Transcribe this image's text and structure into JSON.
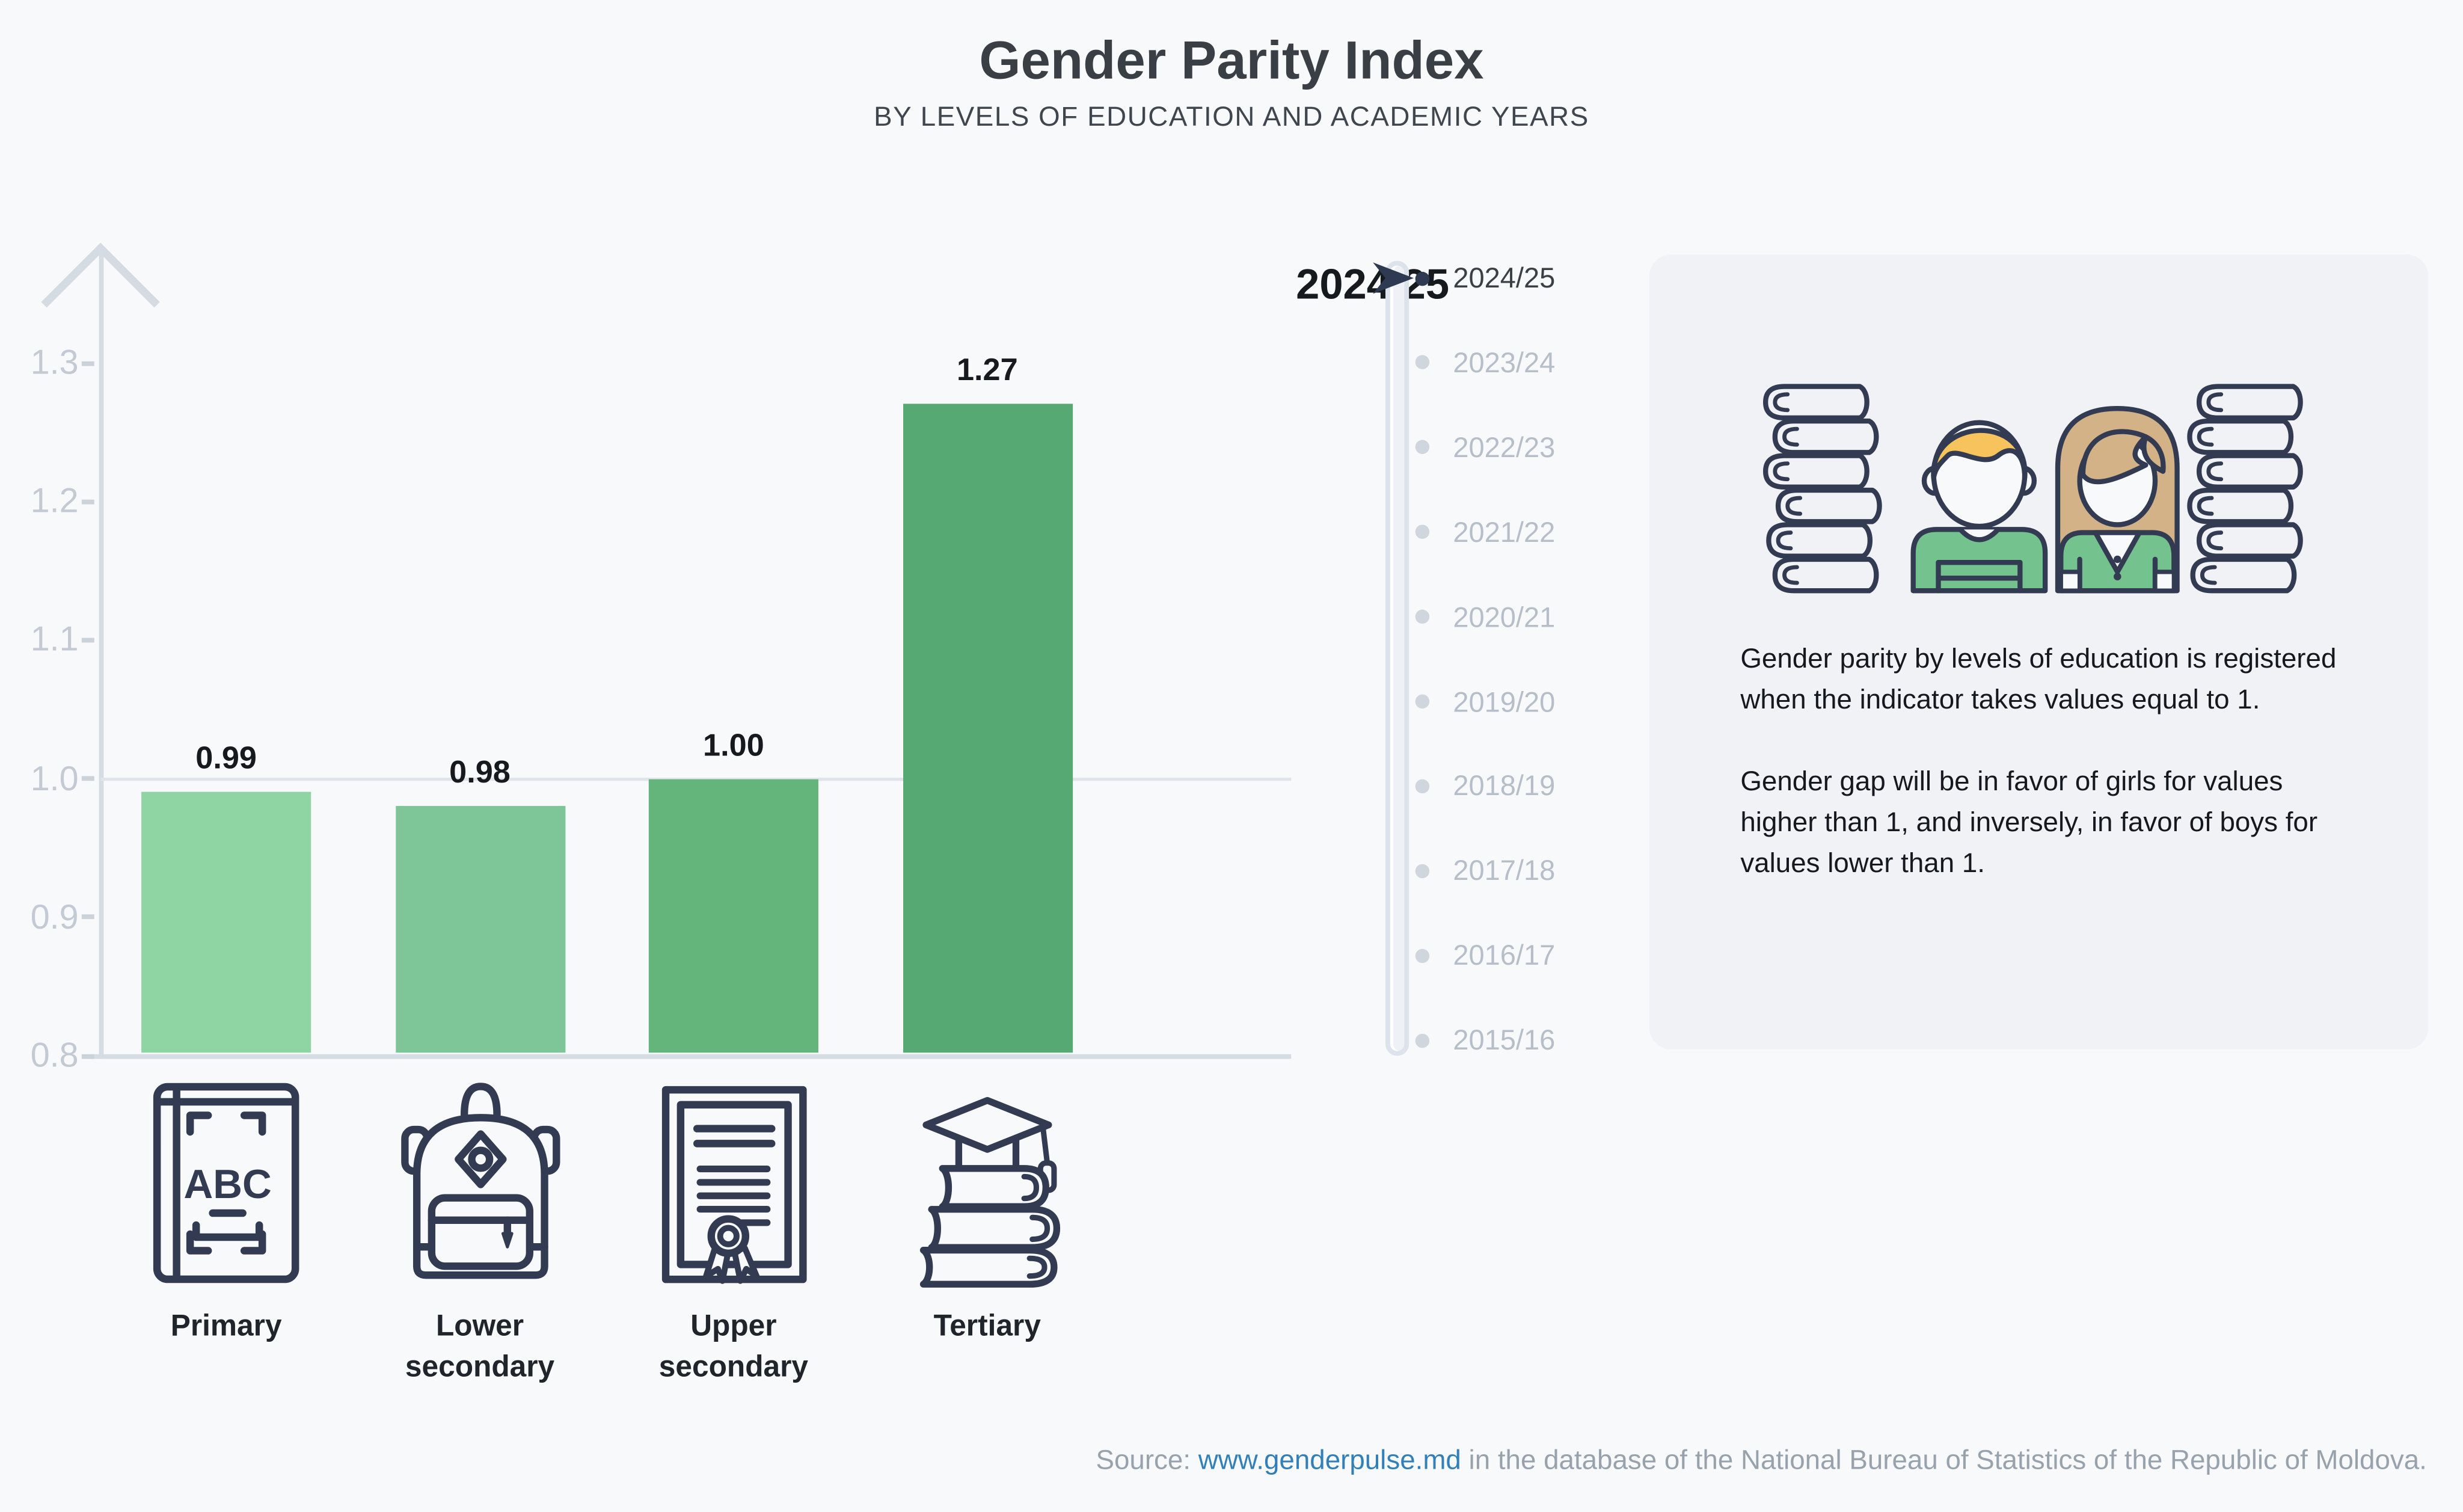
{
  "title": "Gender Parity Index",
  "subtitle": "BY LEVELS OF EDUCATION AND ACADEMIC YEARS",
  "chart_data": {
    "type": "bar",
    "title": "Gender Parity Index",
    "subtitle": "BY LEVELS OF EDUCATION AND ACADEMIC YEARS",
    "categories": [
      "Primary",
      "Lower secondary",
      "Upper secondary",
      "Tertiary"
    ],
    "values": [
      0.99,
      0.98,
      1.0,
      1.27
    ],
    "value_labels": [
      "0.99",
      "0.98",
      "1.00",
      "1.27"
    ],
    "bar_colors": [
      "#8fd5a3",
      "#7ec597",
      "#64b57c",
      "#56a972"
    ],
    "xlabel": "",
    "ylabel": "",
    "ylim": [
      0.8,
      1.3
    ],
    "yticks": [
      1.3,
      1.2,
      1.1,
      1.0,
      0.9,
      0.8
    ],
    "gridline_at": 1.0,
    "grid": "single horizontal line at 1.0",
    "legend": "none",
    "selected_year": "2024/25"
  },
  "timeline": {
    "selected": "2024/25",
    "years": [
      "2024/25",
      "2023/24",
      "2022/23",
      "2021/22",
      "2020/21",
      "2019/20",
      "2018/19",
      "2017/18",
      "2016/17",
      "2015/16"
    ]
  },
  "info_panel": {
    "paragraph1": "Gender parity by levels of education is registered when the indicator takes values equal to 1.",
    "paragraph2": "Gender gap will be in favor of girls for values higher than 1, and inversely, in favor of boys for values lower than 1."
  },
  "source": {
    "prefix": "Source: ",
    "link": "www.genderpulse.md",
    "suffix": " in the database of the National Bureau of Statistics of the Republic of Moldova."
  },
  "colors": {
    "background": "#f8f9fb",
    "panel": "#f0f2f5",
    "axis": "#d6dce3",
    "tick_text": "#c3cad4",
    "timeline_selected": "#3b4046",
    "timeline_unselected": "#b5bec9",
    "cursor": "#2e3a52",
    "icon_outline": "#333b52",
    "boy_hair": "#f6c35c",
    "girl_hair": "#d3b287",
    "shirt_green": "#74c28d",
    "link_blue": "#3380b8"
  }
}
